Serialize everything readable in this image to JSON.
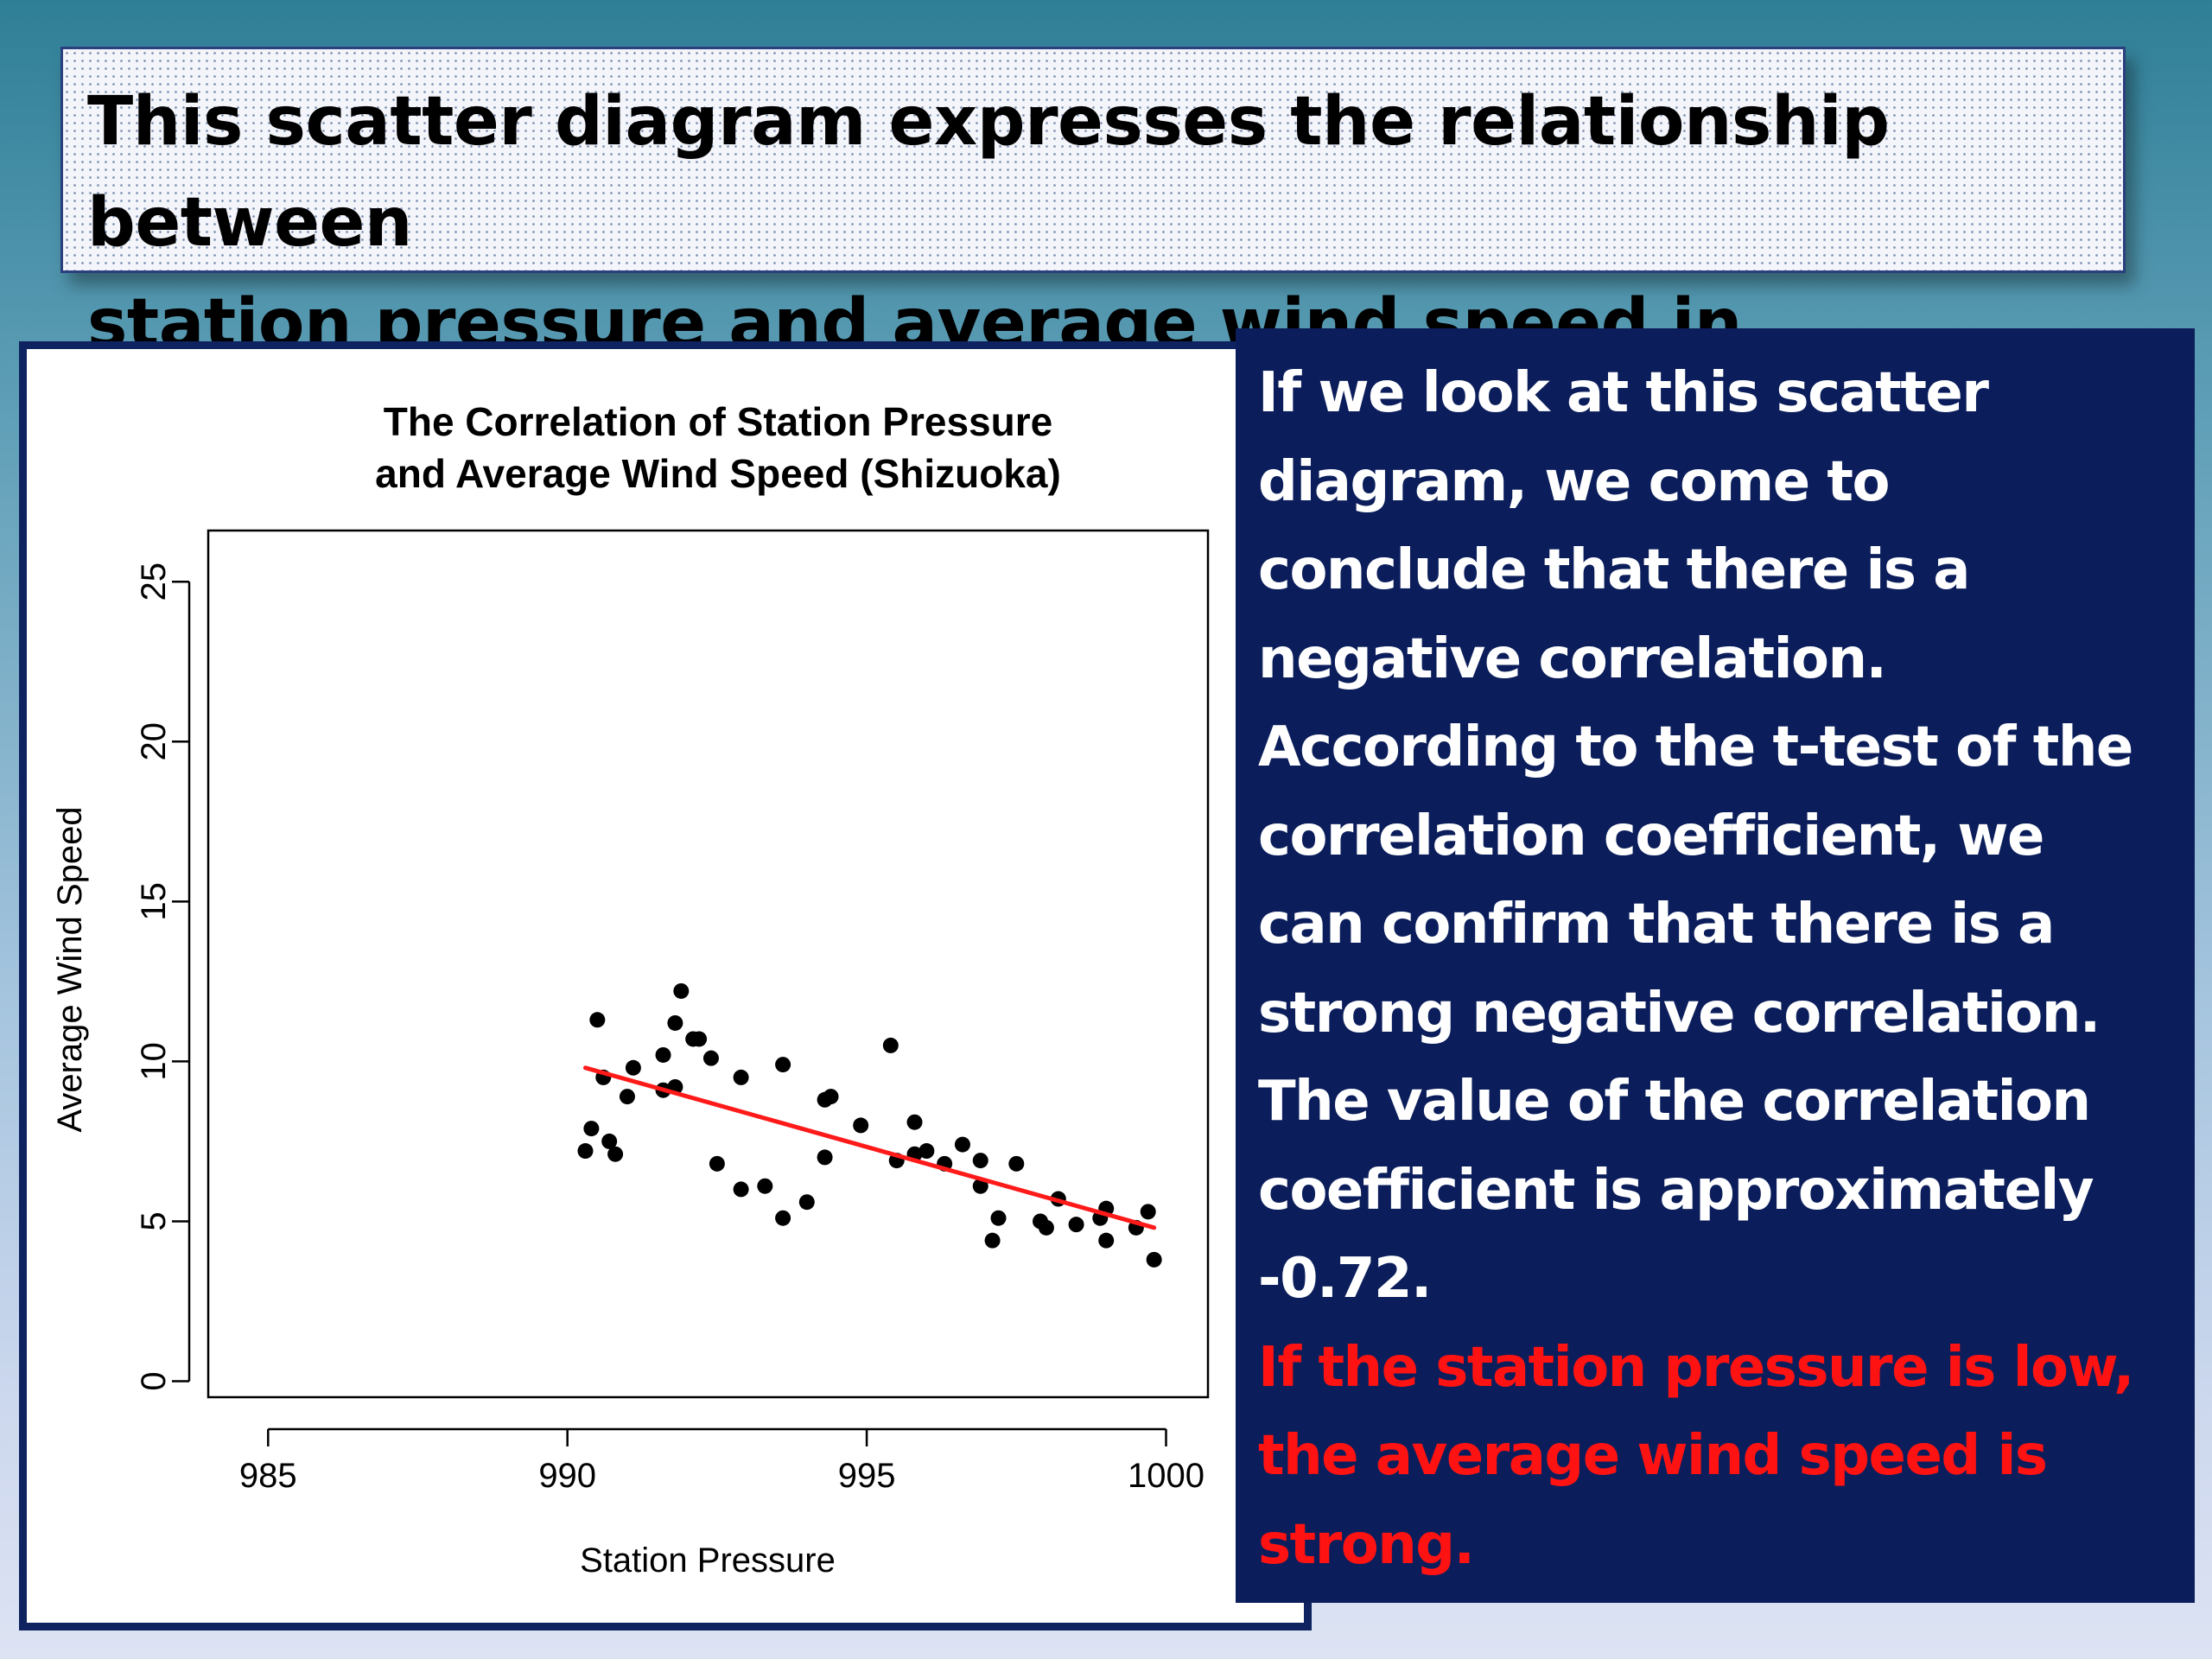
{
  "heading": "This scatter diagram expresses the relationship between\nstation pressure and average wind speed in Shizuoka.",
  "explanation": {
    "main": "If we look at this scatter\ndiagram,  we come to\nconclude that there is a\nnegative correlation.\n According to the t-test of the\ncorrelation coefficient, we\ncan confirm that there is a\nstrong negative correlation.\n The value of the correlation\ncoefficient is approximately\n-0.72.",
    "highlight": "   If the station pressure is low,\nthe average wind speed is\nstrong.",
    "highlight_color": "#ff1212"
  },
  "chart_data": {
    "type": "scatter",
    "title_lines": [
      "The Correlation of Station Pressure",
      "and Average Wind Speed (Shizuoka)"
    ],
    "xlabel": "Station Pressure",
    "ylabel": "Average Wind Speed",
    "xlim": [
      984,
      1000.7
    ],
    "ylim": [
      -0.5,
      26.6
    ],
    "xticks": [
      985,
      990,
      995,
      1000
    ],
    "yticks": [
      0,
      5,
      10,
      15,
      20,
      25
    ],
    "grid": false,
    "point_color": "#000000",
    "points": [
      [
        990.3,
        7.2
      ],
      [
        990.4,
        7.9
      ],
      [
        990.5,
        11.3
      ],
      [
        990.6,
        9.5
      ],
      [
        990.7,
        7.5
      ],
      [
        990.8,
        7.1
      ],
      [
        991.0,
        8.9
      ],
      [
        991.1,
        9.8
      ],
      [
        991.6,
        9.1
      ],
      [
        991.6,
        10.2
      ],
      [
        991.8,
        11.2
      ],
      [
        991.8,
        9.2
      ],
      [
        991.9,
        12.2
      ],
      [
        992.1,
        10.7
      ],
      [
        992.2,
        10.7
      ],
      [
        992.4,
        10.1
      ],
      [
        992.5,
        6.8
      ],
      [
        992.9,
        9.5
      ],
      [
        992.9,
        6.0
      ],
      [
        993.3,
        6.1
      ],
      [
        993.6,
        9.9
      ],
      [
        993.6,
        5.1
      ],
      [
        994.0,
        5.6
      ],
      [
        994.3,
        7.0
      ],
      [
        994.3,
        8.8
      ],
      [
        994.4,
        8.9
      ],
      [
        994.9,
        8.0
      ],
      [
        995.4,
        10.5
      ],
      [
        995.5,
        6.9
      ],
      [
        995.8,
        8.1
      ],
      [
        995.8,
        7.1
      ],
      [
        996.0,
        7.2
      ],
      [
        996.3,
        6.8
      ],
      [
        996.6,
        7.4
      ],
      [
        996.9,
        6.9
      ],
      [
        996.9,
        6.1
      ],
      [
        997.1,
        4.4
      ],
      [
        997.2,
        5.1
      ],
      [
        997.5,
        6.8
      ],
      [
        997.9,
        5.0
      ],
      [
        998.0,
        4.8
      ],
      [
        998.2,
        5.7
      ],
      [
        998.5,
        4.9
      ],
      [
        998.9,
        5.1
      ],
      [
        999.0,
        5.4
      ],
      [
        999.0,
        4.4
      ],
      [
        999.5,
        4.8
      ],
      [
        999.7,
        5.3
      ],
      [
        999.8,
        3.8
      ]
    ],
    "trendline": {
      "x": [
        990.3,
        999.8
      ],
      "y": [
        9.8,
        4.8
      ],
      "color": "#ff1a1a"
    }
  }
}
